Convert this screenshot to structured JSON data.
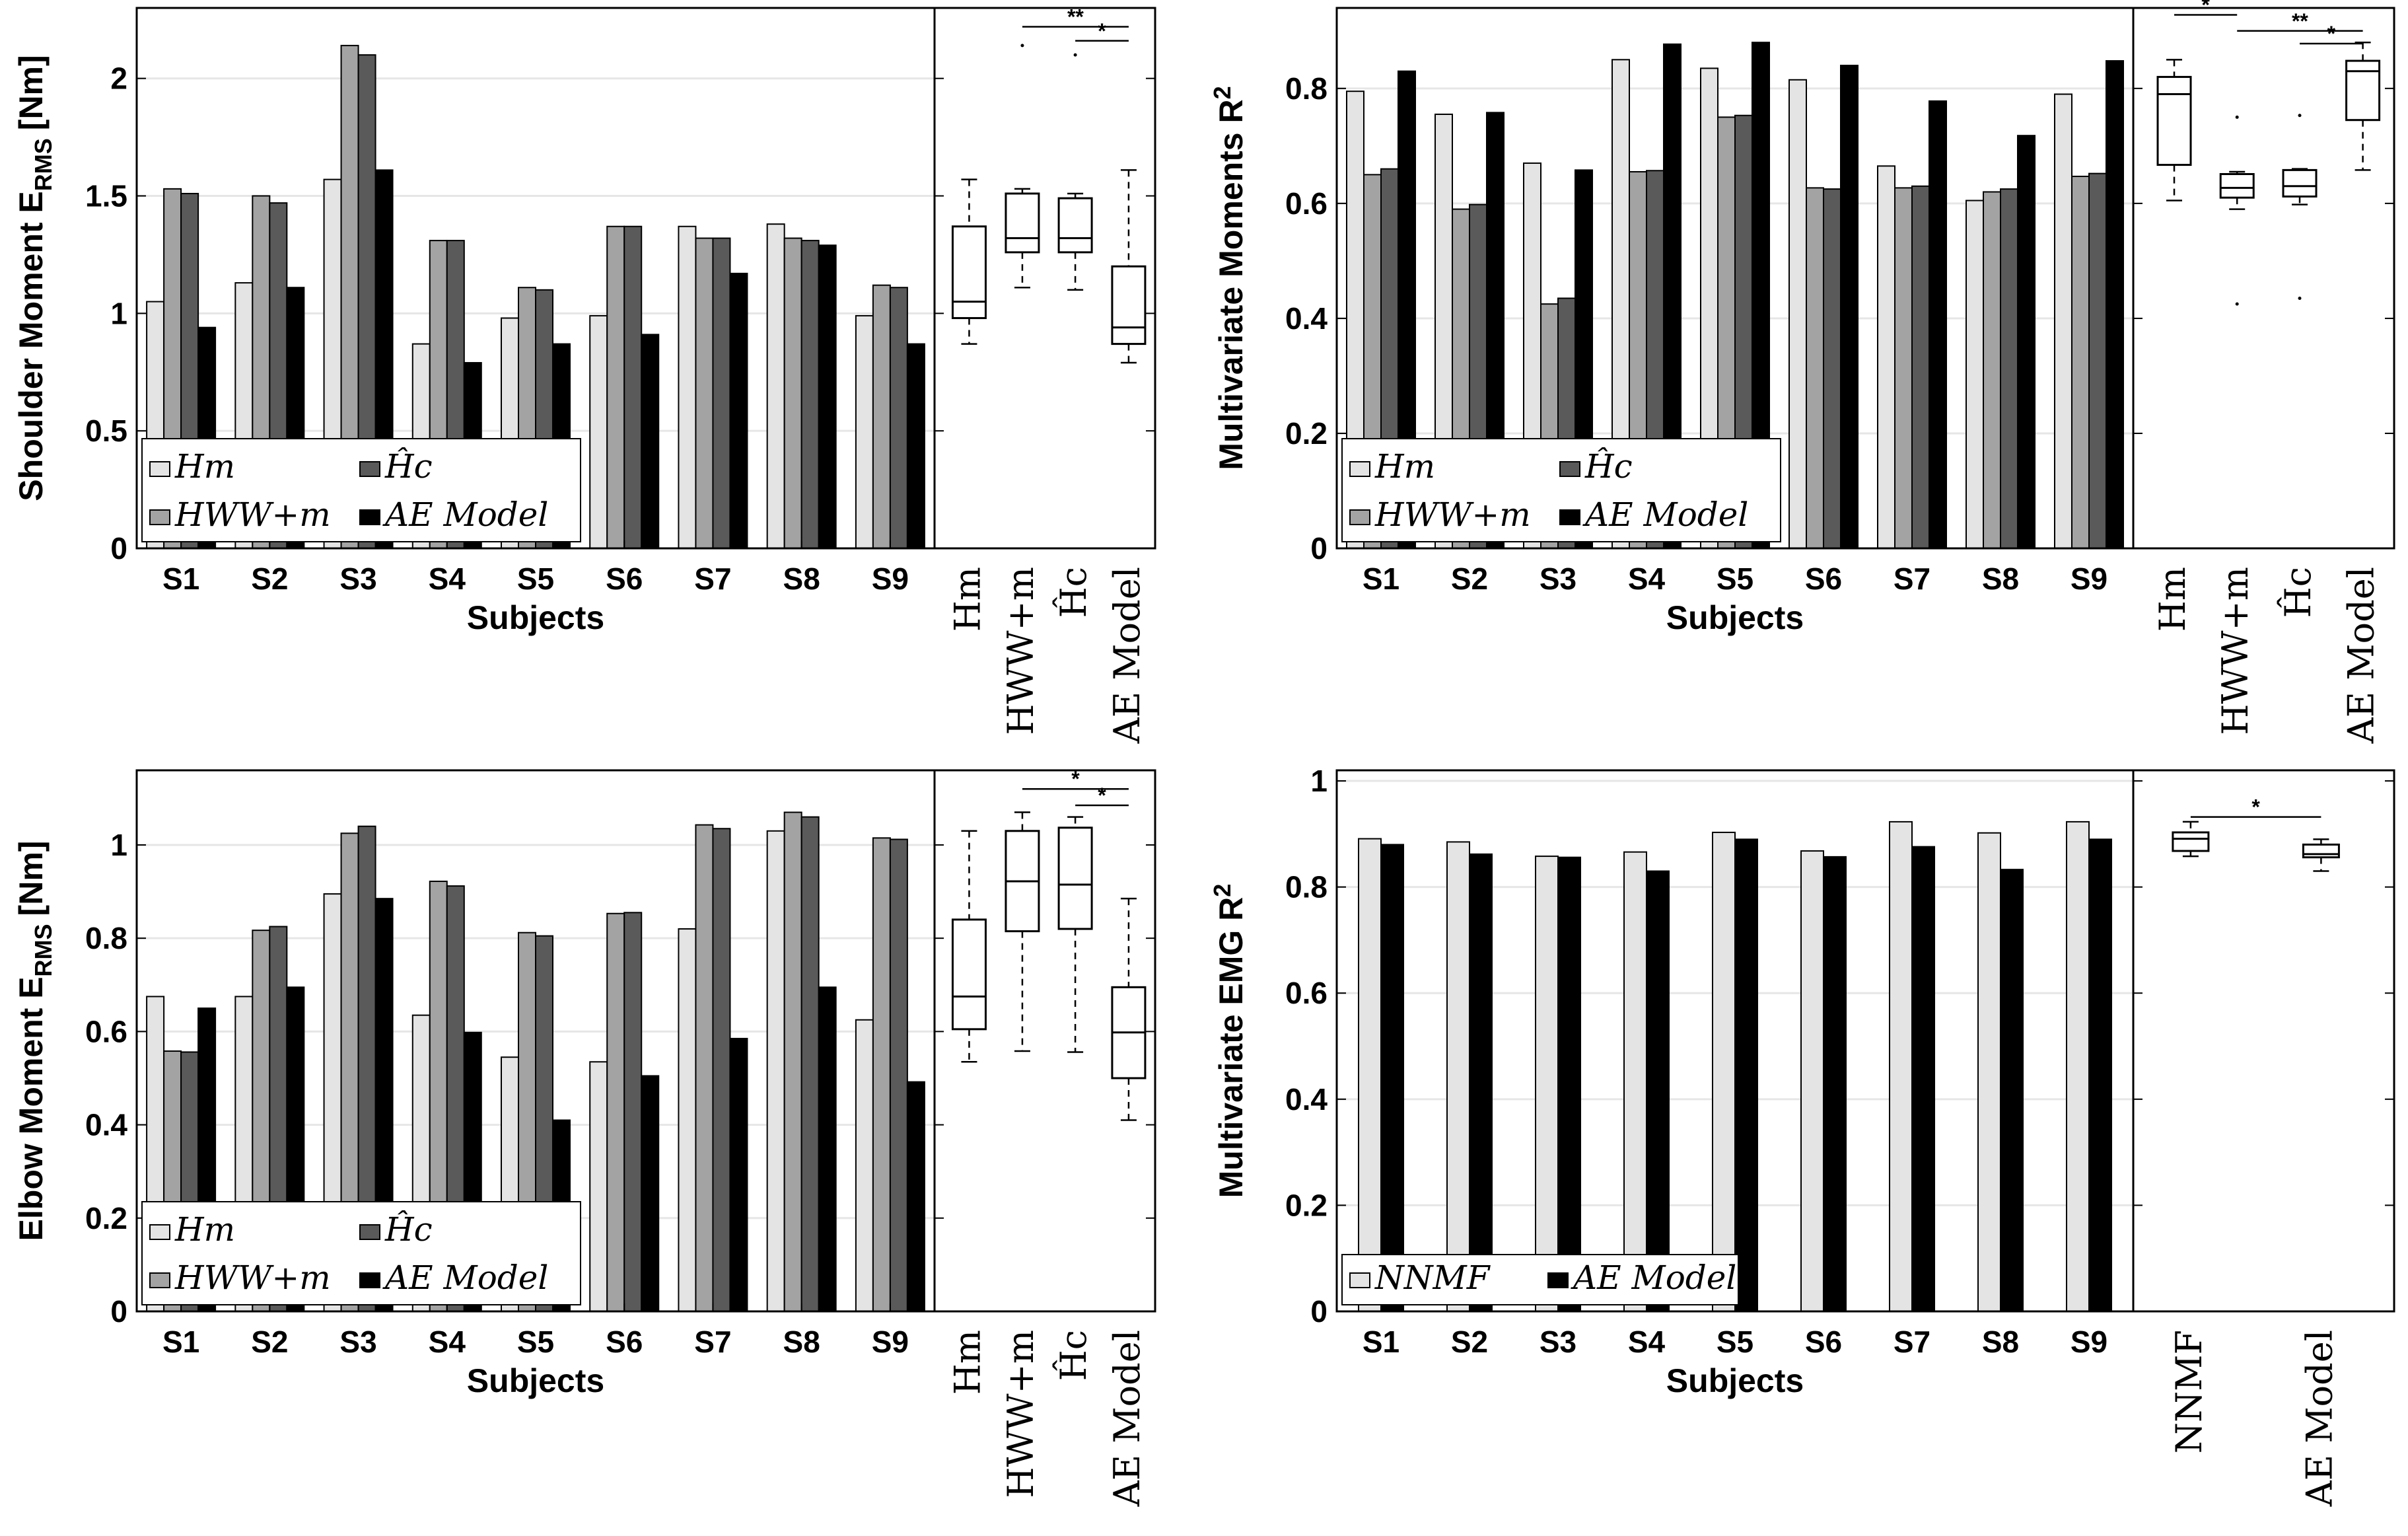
{
  "colors": {
    "hm": "#e4e4e4",
    "hww": "#a3a3a3",
    "hc": "#5a5a5a",
    "ae": "#000000",
    "nnmf": "#e4e4e4",
    "grid": "#e6e6e6"
  },
  "chart_data": [
    {
      "type": "bar",
      "panel": "top-left",
      "ylabel_main": "Shoulder Moment E",
      "ylabel_sub": "RMS",
      "ylabel_unit": "[Nm]",
      "xlabel": "Subjects",
      "categories": [
        "S1",
        "S2",
        "S3",
        "S4",
        "S5",
        "S6",
        "S7",
        "S8",
        "S9"
      ],
      "ylim": [
        0,
        2.3
      ],
      "yticks": [
        0,
        0.5,
        1,
        1.5,
        2
      ],
      "ytick_labels": [
        "0",
        "0.5",
        "1",
        "1.5",
        "2"
      ],
      "grid": "horizontal",
      "legend_placement": "bottom-left",
      "series": [
        {
          "name": "Hm",
          "legend": "Hm",
          "color_key": "hm",
          "values": [
            1.05,
            1.13,
            1.57,
            0.87,
            0.98,
            0.99,
            1.37,
            1.38,
            0.99
          ]
        },
        {
          "name": "HWW+m",
          "legend": "HWW+m",
          "color_key": "hww",
          "values": [
            1.53,
            1.5,
            2.14,
            1.31,
            1.11,
            1.37,
            1.32,
            1.32,
            1.12
          ]
        },
        {
          "name": "Ĥc",
          "legend": "Ĥc",
          "color_key": "hc",
          "values": [
            1.51,
            1.47,
            2.1,
            1.31,
            1.1,
            1.37,
            1.32,
            1.31,
            1.11
          ]
        },
        {
          "name": "AE Model",
          "legend": "AE Model",
          "color_key": "ae",
          "values": [
            0.94,
            1.11,
            1.61,
            0.79,
            0.87,
            0.91,
            1.17,
            1.29,
            0.87
          ]
        }
      ],
      "box": {
        "categories": [
          "Hm",
          "HWW+m",
          "Ĥc",
          "AE Model"
        ],
        "items": [
          {
            "min": 0.87,
            "q1": 0.98,
            "median": 1.05,
            "q3": 1.37,
            "max": 1.57,
            "outliers": []
          },
          {
            "min": 1.11,
            "q1": 1.26,
            "median": 1.32,
            "q3": 1.51,
            "max": 1.53,
            "outliers": [
              2.14
            ]
          },
          {
            "min": 1.1,
            "q1": 1.26,
            "median": 1.32,
            "q3": 1.49,
            "max": 1.51,
            "outliers": [
              2.1
            ]
          },
          {
            "min": 0.79,
            "q1": 0.87,
            "median": 0.94,
            "q3": 1.2,
            "max": 1.61,
            "outliers": []
          }
        ],
        "significance": [
          {
            "from": 1,
            "to": 3,
            "label": "**",
            "y": 2.22
          },
          {
            "from": 2,
            "to": 3,
            "label": "*",
            "y": 2.16
          }
        ]
      }
    },
    {
      "type": "bar",
      "panel": "top-right",
      "ylabel_main": "Multivariate Moments R",
      "ylabel_sup": "2",
      "xlabel": "Subjects",
      "categories": [
        "S1",
        "S2",
        "S3",
        "S4",
        "S5",
        "S6",
        "S7",
        "S8",
        "S9"
      ],
      "ylim": [
        0,
        0.94
      ],
      "yticks": [
        0,
        0.2,
        0.4,
        0.6,
        0.8
      ],
      "ytick_labels": [
        "0",
        "0.2",
        "0.4",
        "0.6",
        "0.8"
      ],
      "grid": "horizontal",
      "legend_placement": "bottom-left",
      "series": [
        {
          "name": "Hm",
          "legend": "Hm",
          "color_key": "hm",
          "values": [
            0.795,
            0.755,
            0.67,
            0.85,
            0.835,
            0.815,
            0.665,
            0.605,
            0.79
          ]
        },
        {
          "name": "HWW+m",
          "legend": "HWW+m",
          "color_key": "hww",
          "values": [
            0.65,
            0.59,
            0.425,
            0.655,
            0.75,
            0.627,
            0.627,
            0.62,
            0.647
          ]
        },
        {
          "name": "Ĥc",
          "legend": "Ĥc",
          "color_key": "hc",
          "values": [
            0.66,
            0.598,
            0.435,
            0.657,
            0.753,
            0.625,
            0.63,
            0.625,
            0.652
          ]
        },
        {
          "name": "AE Model",
          "legend": "AE Model",
          "color_key": "ae",
          "values": [
            0.83,
            0.758,
            0.658,
            0.877,
            0.88,
            0.84,
            0.778,
            0.718,
            0.848
          ]
        }
      ],
      "box": {
        "categories": [
          "Hm",
          "HWW+m",
          "Ĥc",
          "AE Model"
        ],
        "items": [
          {
            "min": 0.605,
            "q1": 0.667,
            "median": 0.79,
            "q3": 0.82,
            "max": 0.85,
            "outliers": []
          },
          {
            "min": 0.59,
            "q1": 0.61,
            "median": 0.627,
            "q3": 0.651,
            "max": 0.655,
            "outliers": [
              0.75,
              0.425
            ]
          },
          {
            "min": 0.598,
            "q1": 0.612,
            "median": 0.63,
            "q3": 0.658,
            "max": 0.66,
            "outliers": [
              0.753,
              0.435
            ]
          },
          {
            "min": 0.658,
            "q1": 0.745,
            "median": 0.83,
            "q3": 0.848,
            "max": 0.88,
            "outliers": []
          }
        ],
        "significance": [
          {
            "from": 0,
            "to": 1,
            "label": "*",
            "y": 0.928
          },
          {
            "from": 1,
            "to": 3,
            "label": "**",
            "y": 0.9
          },
          {
            "from": 2,
            "to": 3,
            "label": "*",
            "y": 0.878
          }
        ]
      }
    },
    {
      "type": "bar",
      "panel": "bottom-left",
      "ylabel_main": "Elbow Moment E",
      "ylabel_sub": "RMS",
      "ylabel_unit": "[Nm]",
      "xlabel": "Subjects",
      "categories": [
        "S1",
        "S2",
        "S3",
        "S4",
        "S5",
        "S6",
        "S7",
        "S8",
        "S9"
      ],
      "ylim": [
        0,
        1.16
      ],
      "yticks": [
        0,
        0.2,
        0.4,
        0.6,
        0.8,
        1
      ],
      "ytick_labels": [
        "0",
        "0.2",
        "0.4",
        "0.6",
        "0.8",
        "1"
      ],
      "grid": "horizontal",
      "legend_placement": "bottom-left",
      "series": [
        {
          "name": "Hm",
          "legend": "Hm",
          "color_key": "hm",
          "values": [
            0.675,
            0.675,
            0.895,
            0.635,
            0.545,
            0.535,
            0.82,
            1.03,
            0.625
          ]
        },
        {
          "name": "HWW+m",
          "legend": "HWW+m",
          "color_key": "hww",
          "values": [
            0.558,
            0.817,
            1.025,
            0.922,
            0.812,
            0.853,
            1.043,
            1.07,
            1.015
          ]
        },
        {
          "name": "Ĥc",
          "legend": "Ĥc",
          "color_key": "hc",
          "values": [
            0.556,
            0.825,
            1.04,
            0.912,
            0.805,
            0.855,
            1.035,
            1.06,
            1.012
          ]
        },
        {
          "name": "AE Model",
          "legend": "AE Model",
          "color_key": "ae",
          "values": [
            0.65,
            0.695,
            0.885,
            0.598,
            0.41,
            0.505,
            0.585,
            0.695,
            0.492
          ]
        }
      ],
      "box": {
        "categories": [
          "Hm",
          "HWW+m",
          "Ĥc",
          "AE Model"
        ],
        "items": [
          {
            "min": 0.535,
            "q1": 0.605,
            "median": 0.675,
            "q3": 0.84,
            "max": 1.03,
            "outliers": []
          },
          {
            "min": 0.558,
            "q1": 0.815,
            "median": 0.922,
            "q3": 1.03,
            "max": 1.07,
            "outliers": []
          },
          {
            "min": 0.556,
            "q1": 0.82,
            "median": 0.915,
            "q3": 1.037,
            "max": 1.06,
            "outliers": []
          },
          {
            "min": 0.41,
            "q1": 0.5,
            "median": 0.598,
            "q3": 0.695,
            "max": 0.885,
            "outliers": []
          }
        ],
        "significance": [
          {
            "from": 1,
            "to": 3,
            "label": "*",
            "y": 1.12
          },
          {
            "from": 2,
            "to": 3,
            "label": "*",
            "y": 1.085
          }
        ]
      }
    },
    {
      "type": "bar",
      "panel": "bottom-right",
      "ylabel_main": "Multivariate EMG R",
      "ylabel_sup": "2",
      "xlabel": "Subjects",
      "categories": [
        "S1",
        "S2",
        "S3",
        "S4",
        "S5",
        "S6",
        "S7",
        "S8",
        "S9"
      ],
      "ylim": [
        0,
        1.02
      ],
      "yticks": [
        0,
        0.2,
        0.4,
        0.6,
        0.8,
        1
      ],
      "ytick_labels": [
        "0",
        "0.2",
        "0.4",
        "0.6",
        "0.8",
        "1"
      ],
      "grid": "horizontal",
      "legend_placement": "bottom-left",
      "series": [
        {
          "name": "NNMF",
          "legend": "NNMF",
          "color_key": "nnmf",
          "values": [
            0.891,
            0.885,
            0.858,
            0.866,
            0.903,
            0.868,
            0.923,
            0.902,
            0.923
          ]
        },
        {
          "name": "AE Model",
          "legend": "AE Model",
          "color_key": "ae",
          "values": [
            0.88,
            0.862,
            0.856,
            0.83,
            0.89,
            0.857,
            0.876,
            0.833,
            0.89
          ]
        }
      ],
      "box": {
        "categories": [
          "NNMF",
          "AE Model"
        ],
        "items": [
          {
            "min": 0.858,
            "q1": 0.868,
            "median": 0.891,
            "q3": 0.903,
            "max": 0.923,
            "outliers": []
          },
          {
            "min": 0.83,
            "q1": 0.856,
            "median": 0.862,
            "q3": 0.88,
            "max": 0.89,
            "outliers": []
          }
        ],
        "significance": [
          {
            "from": 0,
            "to": 1,
            "label": "*",
            "y": 0.932
          }
        ]
      }
    }
  ]
}
